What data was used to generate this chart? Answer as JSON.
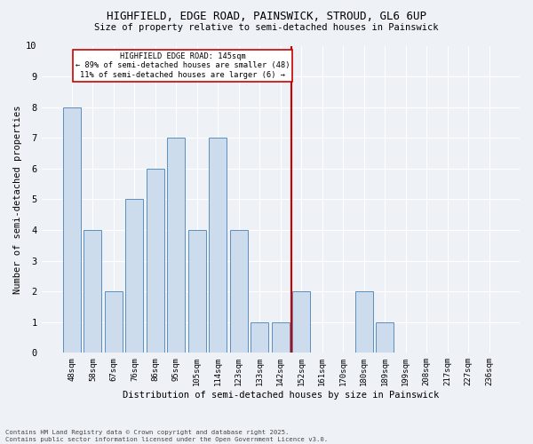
{
  "title": "HIGHFIELD, EDGE ROAD, PAINSWICK, STROUD, GL6 6UP",
  "subtitle": "Size of property relative to semi-detached houses in Painswick",
  "xlabel": "Distribution of semi-detached houses by size in Painswick",
  "ylabel": "Number of semi-detached properties",
  "categories": [
    "48sqm",
    "58sqm",
    "67sqm",
    "76sqm",
    "86sqm",
    "95sqm",
    "105sqm",
    "114sqm",
    "123sqm",
    "133sqm",
    "142sqm",
    "152sqm",
    "161sqm",
    "170sqm",
    "180sqm",
    "189sqm",
    "199sqm",
    "208sqm",
    "217sqm",
    "227sqm",
    "236sqm"
  ],
  "values": [
    8,
    4,
    2,
    5,
    6,
    7,
    4,
    7,
    4,
    1,
    1,
    2,
    0,
    0,
    2,
    1,
    0,
    0,
    0,
    0,
    0
  ],
  "bar_color": "#ccdcec",
  "bar_edgecolor": "#5a8fbf",
  "background_color": "#eef2f7",
  "grid_color": "#ffffff",
  "vline_x_index": 10.5,
  "vline_color": "#cc0000",
  "annotation_title": "HIGHFIELD EDGE ROAD: 145sqm",
  "annotation_line1": "← 89% of semi-detached houses are smaller (48)",
  "annotation_line2": "11% of semi-detached houses are larger (6) →",
  "annotation_box_color": "#ffffff",
  "annotation_box_edgecolor": "#cc0000",
  "footnote1": "Contains HM Land Registry data © Crown copyright and database right 2025.",
  "footnote2": "Contains public sector information licensed under the Open Government Licence v3.0.",
  "ylim": [
    0,
    10
  ],
  "yticks": [
    0,
    1,
    2,
    3,
    4,
    5,
    6,
    7,
    8,
    9,
    10
  ]
}
